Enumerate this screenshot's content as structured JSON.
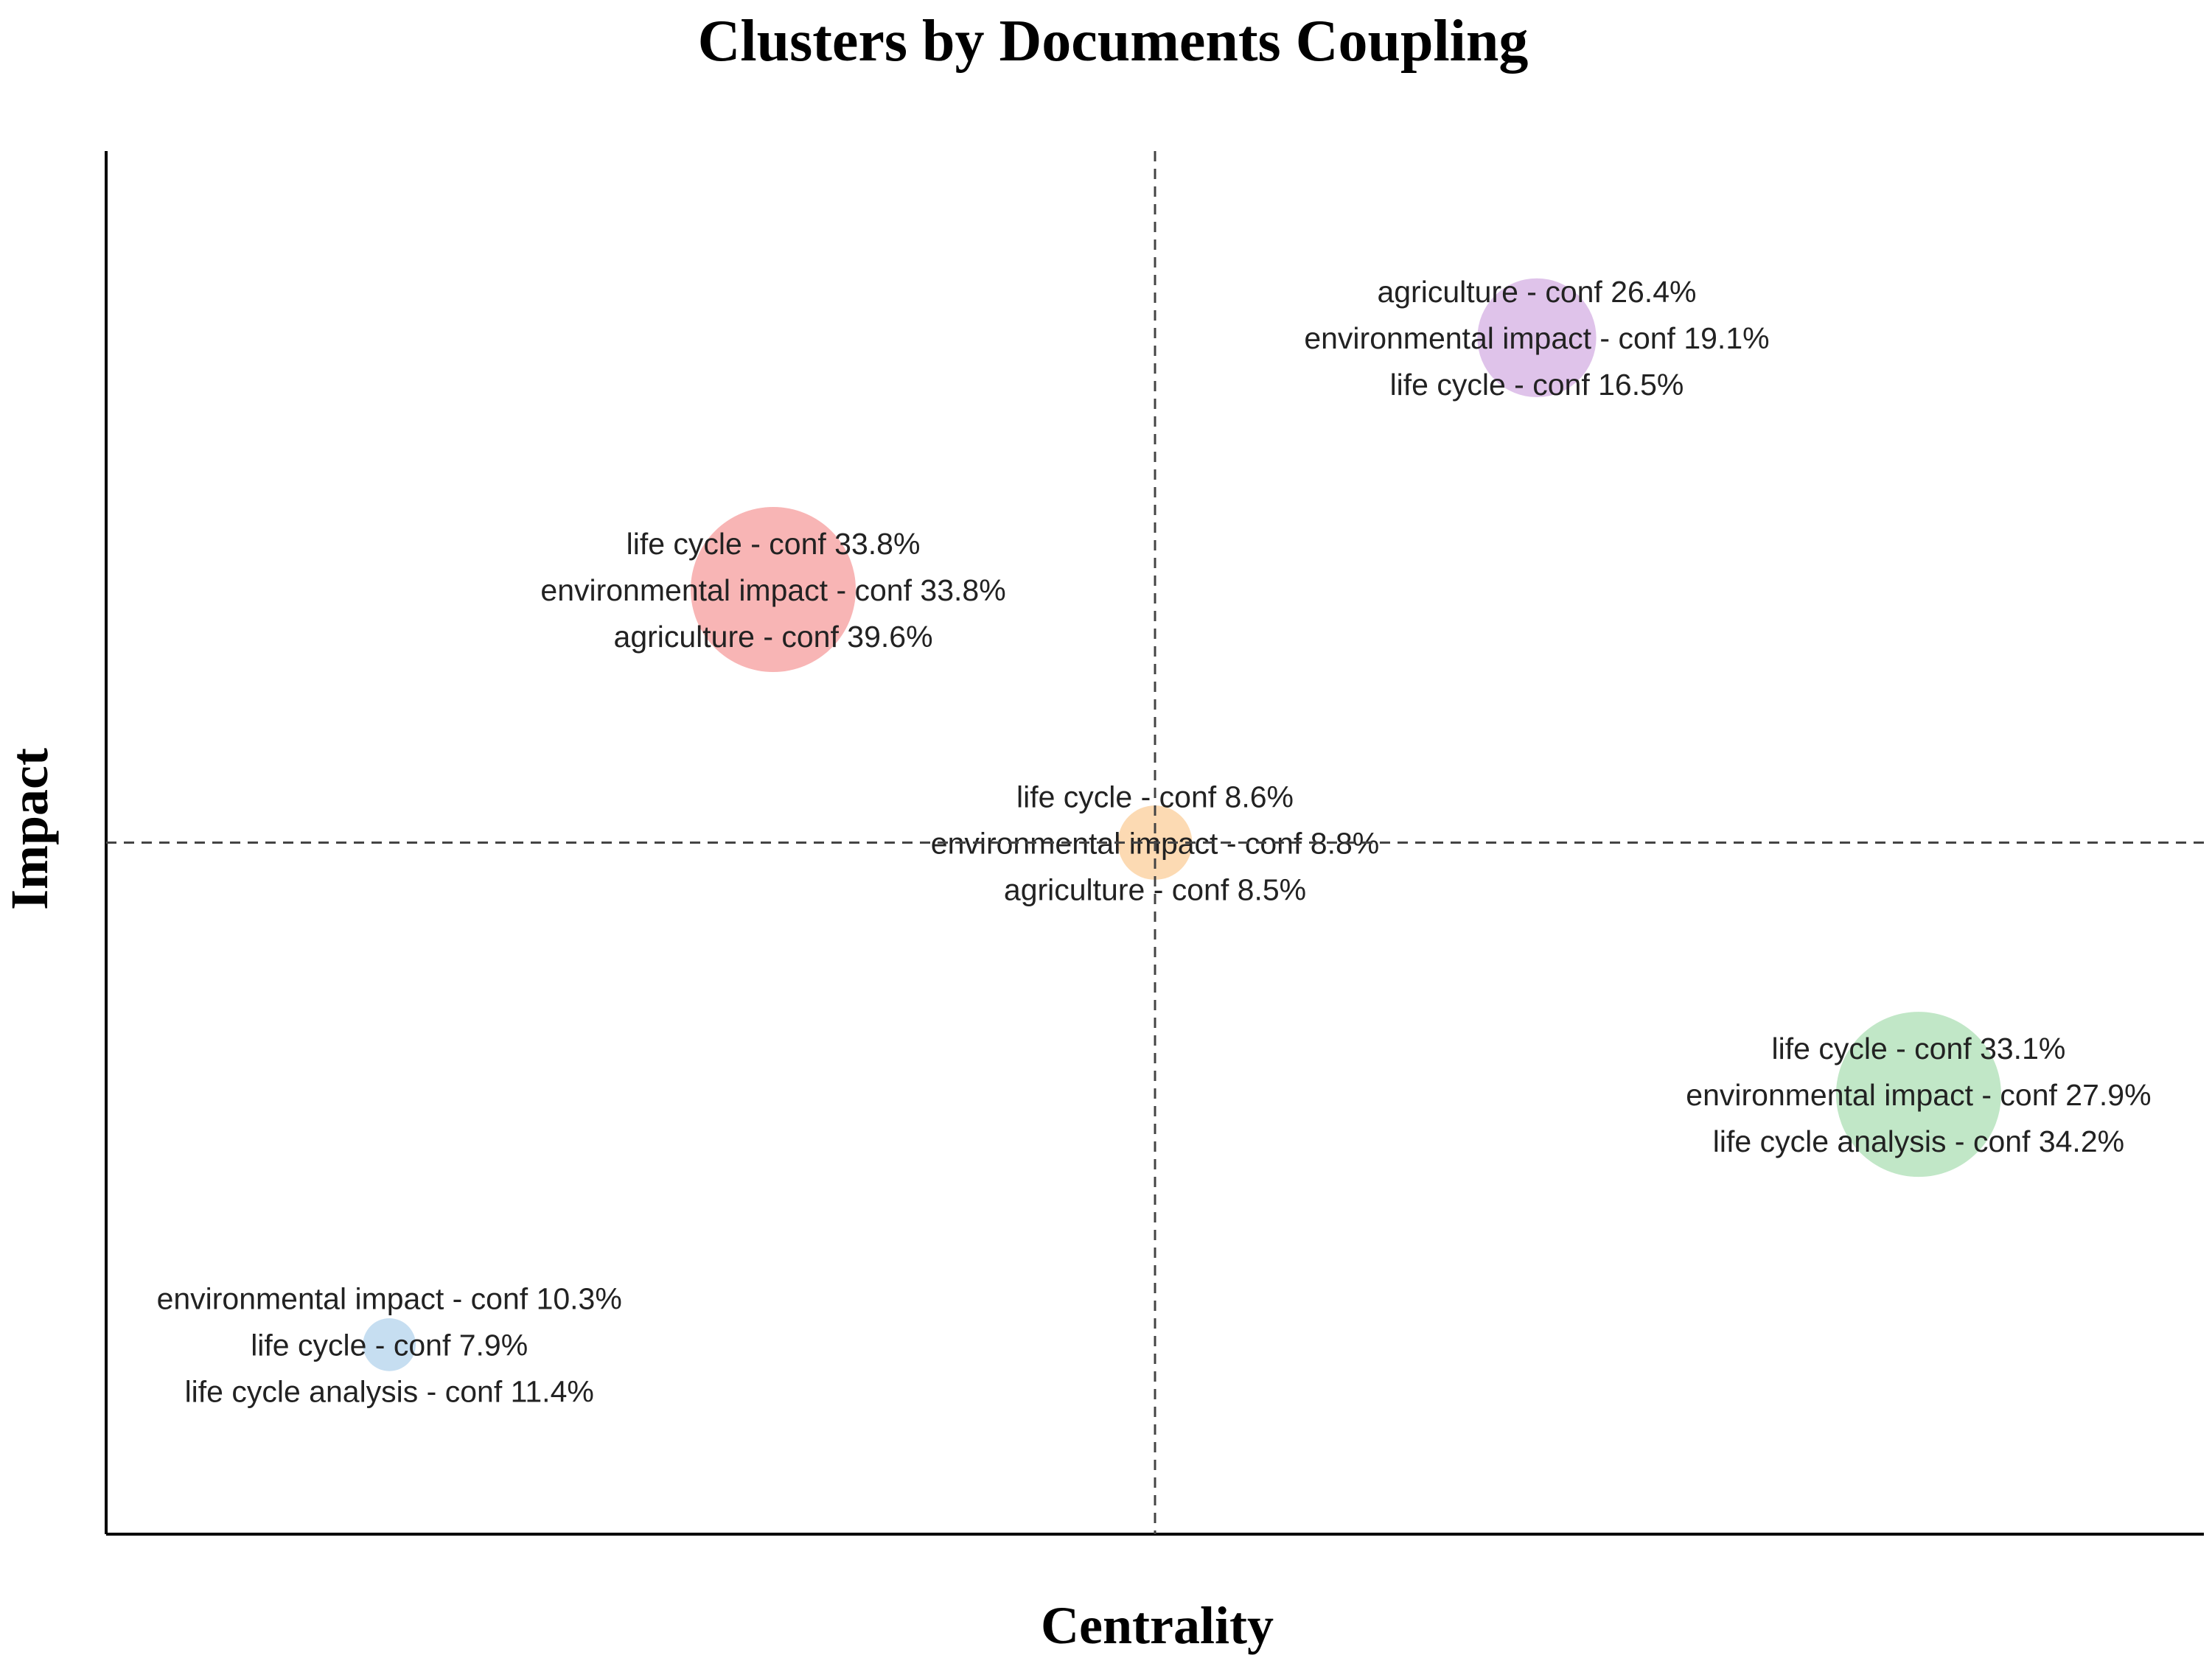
{
  "chart_data": {
    "type": "scatter",
    "title": "Clusters by Documents Coupling",
    "xlabel": "Centrality",
    "ylabel": "Impact",
    "xlim": [
      0,
      1
    ],
    "ylim": [
      0,
      1
    ],
    "reference_lines": {
      "x": 0.5,
      "y": 0.5
    },
    "grid": false,
    "legend": "none",
    "series": [
      {
        "name": "cluster-red",
        "color": "#f7a8a8",
        "x": 0.318,
        "y": 0.683,
        "size": 1.0,
        "labels": [
          "life cycle - conf 33.8%",
          "environmental impact - conf 33.8%",
          "agriculture - conf 39.6%"
        ]
      },
      {
        "name": "cluster-purple",
        "color": "#d9b8e6",
        "x": 0.682,
        "y": 0.865,
        "size": 0.72,
        "labels": [
          "agriculture - conf 26.4%",
          "environmental impact - conf 19.1%",
          "life cycle - conf 16.5%"
        ]
      },
      {
        "name": "cluster-orange",
        "color": "#fbd3a6",
        "x": 0.5,
        "y": 0.5,
        "size": 0.45,
        "labels": [
          "life cycle - conf 8.6%",
          "environmental impact - conf 8.8%",
          "agriculture - conf 8.5%"
        ]
      },
      {
        "name": "cluster-green",
        "color": "#b6e3bd",
        "x": 0.864,
        "y": 0.318,
        "size": 1.0,
        "labels": [
          "life cycle - conf 33.1%",
          "environmental impact - conf 27.9%",
          "life cycle analysis - conf 34.2%"
        ]
      },
      {
        "name": "cluster-blue",
        "color": "#bcd8ee",
        "x": 0.135,
        "y": 0.137,
        "size": 0.32,
        "labels": [
          "environmental impact - conf 10.3%",
          "life cycle - conf 7.9%",
          "life cycle analysis - conf 11.4%"
        ]
      }
    ]
  }
}
